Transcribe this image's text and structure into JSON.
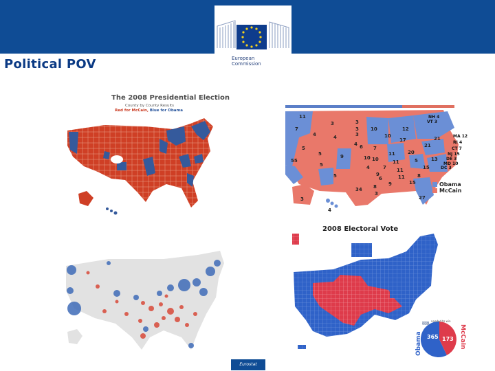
{
  "header": {
    "org_line1": "European",
    "org_line2": "Commission",
    "slide_title": "Political POV"
  },
  "panel_county_map": {
    "title": "The 2008 Presidential Election",
    "subtitle": "County by County Results",
    "legend_red": "Red for McCain,",
    "legend_blue": "Blue for Obama"
  },
  "panel_state_map": {
    "legend_obama": "Obama",
    "legend_mccain": "McCain",
    "labels": [
      "11",
      "3",
      "3",
      "7",
      "4",
      "4",
      "3",
      "5",
      "3",
      "55",
      "5",
      "9",
      "5",
      "6",
      "10",
      "5",
      "4",
      "7",
      "10",
      "17",
      "21",
      "10",
      "11",
      "20",
      "21",
      "9",
      "5",
      "8",
      "11",
      "11",
      "15",
      "13",
      "15",
      "11",
      "6",
      "4",
      "34",
      "8",
      "7",
      "9",
      "3",
      "3",
      "4",
      "27",
      "12",
      "10",
      "NH 4",
      "VT 3",
      "MA 12",
      "RI 4",
      "CT 7",
      "NJ 15",
      "DE 3",
      "MD 10",
      "DC 3"
    ]
  },
  "panel_bubble_map": {},
  "panel_electoral": {
    "title": "2008 Electoral Vote",
    "obama_votes": "365",
    "mccain_votes": "173",
    "obama_label": "Obama",
    "mccain_label": "McCain",
    "needed_note": "needed to win",
    "needed_value": "270"
  },
  "footer": {
    "label": "Eurostat"
  },
  "colors": {
    "header_blue": "#0f4c95",
    "republican_red": "#d9472d",
    "democrat_blue": "#4a78c6",
    "title_blue": "#0b3a84"
  }
}
